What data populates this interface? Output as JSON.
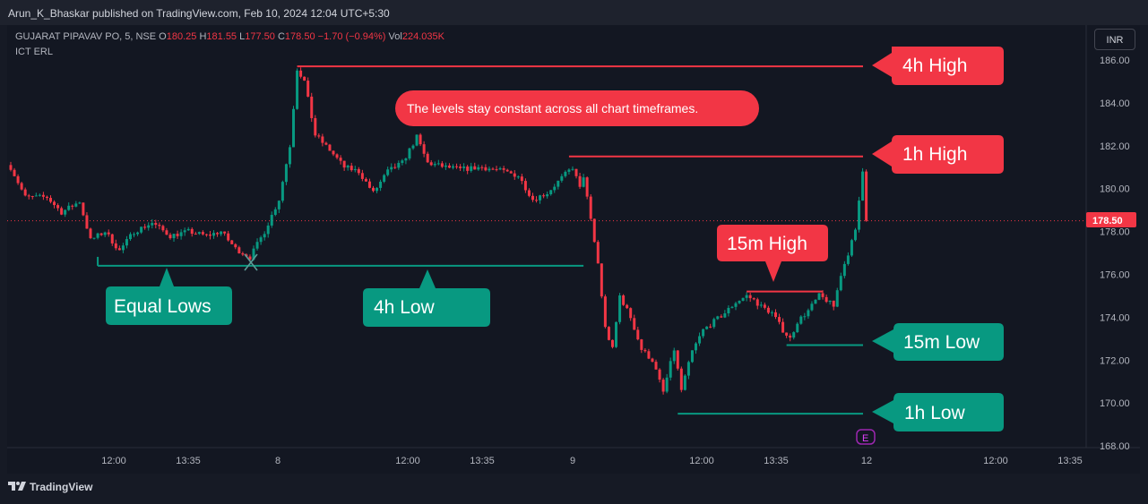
{
  "header": {
    "published": "Arun_K_Bhaskar published on TradingView.com, Feb 10, 2024 12:04 UTC+5:30"
  },
  "symbol_info": {
    "name": "GUJARAT PIPAVAV PO, 5, NSE",
    "o_label": "O",
    "o": "180.25",
    "h_label": "H",
    "h": "181.55",
    "l_label": "L",
    "l": "177.50",
    "c_label": "C",
    "c": "178.50",
    "change": "−1.70 (−0.94%)",
    "vol_label": "Vol",
    "vol": "224.035K"
  },
  "indicator": "ICT ERL",
  "currency_button": "INR",
  "footer": {
    "brand": "TradingView",
    "logo": "tradingview-logo"
  },
  "colors": {
    "up": "#089981",
    "down": "#f23645",
    "teal_label": "#089981",
    "red_label": "#f23645",
    "background": "#131722"
  },
  "chart_data": {
    "type": "candlestick",
    "title": "GUJARAT PIPAVAV PO, 5, NSE",
    "ylim": [
      168,
      187
    ],
    "y_ticks": [
      "186.00",
      "184.00",
      "182.00",
      "180.00",
      "178.00",
      "176.00",
      "174.00",
      "172.00",
      "170.00",
      "168.00"
    ],
    "x_ticks": [
      "12:00",
      "13:35",
      "8",
      "12:00",
      "13:35",
      "9",
      "12:00",
      "13:35",
      "12",
      "12:00",
      "13:35"
    ],
    "last_price": "178.50",
    "anchors": [
      {
        "i": 0,
        "p": 181.0
      },
      {
        "i": 4,
        "p": 179.6
      },
      {
        "i": 10,
        "p": 179.6
      },
      {
        "i": 14,
        "p": 178.9
      },
      {
        "i": 19,
        "p": 179.4
      },
      {
        "i": 22,
        "p": 177.6
      },
      {
        "i": 26,
        "p": 178.0
      },
      {
        "i": 30,
        "p": 177.1
      },
      {
        "i": 34,
        "p": 178.0
      },
      {
        "i": 39,
        "p": 178.4
      },
      {
        "i": 44,
        "p": 177.8
      },
      {
        "i": 49,
        "p": 178.0
      },
      {
        "i": 54,
        "p": 177.8
      },
      {
        "i": 58,
        "p": 178.0
      },
      {
        "i": 62,
        "p": 177.2
      },
      {
        "i": 66,
        "p": 176.8
      },
      {
        "i": 70,
        "p": 178.0
      },
      {
        "i": 74,
        "p": 179.5
      },
      {
        "i": 77,
        "p": 182.0
      },
      {
        "i": 79,
        "p": 185.6
      },
      {
        "i": 81,
        "p": 185.0
      },
      {
        "i": 84,
        "p": 182.5
      },
      {
        "i": 88,
        "p": 181.8
      },
      {
        "i": 92,
        "p": 181.0
      },
      {
        "i": 96,
        "p": 180.8
      },
      {
        "i": 100,
        "p": 179.8
      },
      {
        "i": 104,
        "p": 180.8
      },
      {
        "i": 108,
        "p": 181.2
      },
      {
        "i": 112,
        "p": 182.4
      },
      {
        "i": 115,
        "p": 181.2
      },
      {
        "i": 120,
        "p": 181.0
      },
      {
        "i": 124,
        "p": 180.9
      },
      {
        "i": 130,
        "p": 181.0
      },
      {
        "i": 136,
        "p": 180.8
      },
      {
        "i": 140,
        "p": 180.6
      },
      {
        "i": 144,
        "p": 179.5
      },
      {
        "i": 148,
        "p": 179.8
      },
      {
        "i": 152,
        "p": 180.5
      },
      {
        "i": 155,
        "p": 181.0
      },
      {
        "i": 157,
        "p": 180.0
      },
      {
        "i": 158,
        "p": 180.6
      },
      {
        "i": 160,
        "p": 178.5
      },
      {
        "i": 162,
        "p": 176.5
      },
      {
        "i": 164,
        "p": 173.5
      },
      {
        "i": 166,
        "p": 172.5
      },
      {
        "i": 168,
        "p": 175.0
      },
      {
        "i": 171,
        "p": 174.0
      },
      {
        "i": 174,
        "p": 172.5
      },
      {
        "i": 177,
        "p": 172.0
      },
      {
        "i": 180,
        "p": 170.5
      },
      {
        "i": 183,
        "p": 172.5
      },
      {
        "i": 185,
        "p": 170.6
      },
      {
        "i": 188,
        "p": 172.4
      },
      {
        "i": 191,
        "p": 173.4
      },
      {
        "i": 194,
        "p": 173.8
      },
      {
        "i": 197,
        "p": 174.2
      },
      {
        "i": 200,
        "p": 174.7
      },
      {
        "i": 203,
        "p": 175.0
      },
      {
        "i": 205,
        "p": 174.8
      },
      {
        "i": 207,
        "p": 174.5
      },
      {
        "i": 210,
        "p": 174.2
      },
      {
        "i": 213,
        "p": 173.4
      },
      {
        "i": 215,
        "p": 173.0
      },
      {
        "i": 217,
        "p": 173.8
      },
      {
        "i": 220,
        "p": 174.3
      },
      {
        "i": 223,
        "p": 175.0
      },
      {
        "i": 225,
        "p": 174.8
      },
      {
        "i": 227,
        "p": 174.5
      },
      {
        "i": 229,
        "p": 176.0
      },
      {
        "i": 231,
        "p": 177.0
      },
      {
        "i": 233,
        "p": 178.0
      },
      {
        "i": 235,
        "p": 180.9
      },
      {
        "i": 236,
        "p": 178.5
      }
    ],
    "levels": [
      {
        "name": "4h High",
        "value": 185.7,
        "color": "red",
        "from_i": 79
      },
      {
        "name": "1h High",
        "value": 181.5,
        "color": "red",
        "from_i": 154
      },
      {
        "name": "15m High",
        "value": 175.2,
        "color": "red",
        "from_i": 203,
        "to_i": 224
      },
      {
        "name": "15m Low",
        "value": 172.7,
        "color": "teal",
        "from_i": 214
      },
      {
        "name": "1h Low",
        "value": 169.5,
        "color": "teal",
        "from_i": 184
      },
      {
        "name": "Equal Lows / 4h Low",
        "value": 176.4,
        "color": "teal",
        "from_i": 24,
        "to_i": 158
      }
    ],
    "labels": {
      "h4_high": "4h High",
      "h1_high": "1h High",
      "m15_high": "15m High",
      "m15_low": "15m Low",
      "h1_low": "1h Low",
      "equal_lows": "Equal Lows",
      "h4_low": "4h Low",
      "note": "The levels stay constant across all chart timeframes."
    },
    "event_marker": "E"
  }
}
